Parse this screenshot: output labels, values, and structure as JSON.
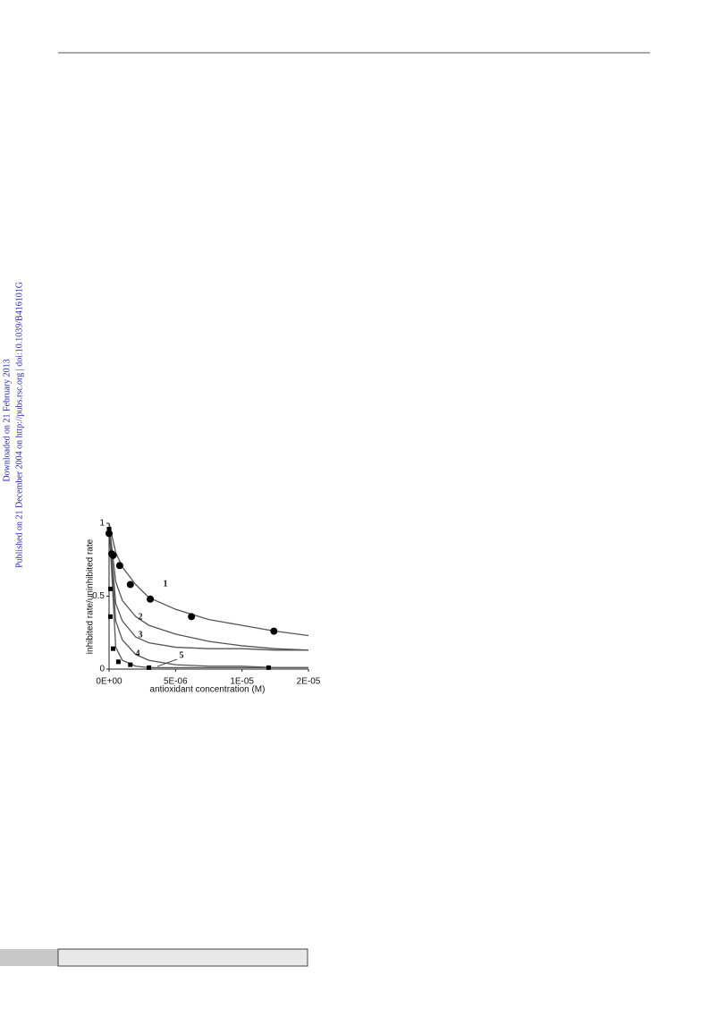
{
  "sidebar": {
    "downloaded": "Downloaded on 21 February 2013",
    "published": "Published on 21 December 2004 on http://pubs.rsc.org | doi:10.1039/B416101G"
  },
  "chart_data": {
    "type": "line",
    "y_label": "inhibited rate/uninhibited rate",
    "x_label": "antioxidant concentration (M)",
    "xlim": [
      0,
      1.5e-05
    ],
    "ylim": [
      0,
      1
    ],
    "xticks": [
      {
        "value": 0,
        "label": "0E+00"
      },
      {
        "value": 5e-06,
        "label": "5E-06"
      },
      {
        "value": 1e-05,
        "label": "1E-05"
      },
      {
        "value": 1.5e-05,
        "label": "2E-05"
      }
    ],
    "yticks": [
      0,
      0.5,
      1
    ],
    "line_color": "#555555",
    "series": [
      {
        "name": "1",
        "x": [
          0,
          5e-07,
          1e-06,
          2e-06,
          3e-06,
          5e-06,
          7.5e-06,
          1e-05,
          1.25e-05,
          1.5e-05
        ],
        "values": [
          1.0,
          0.8,
          0.7,
          0.58,
          0.49,
          0.41,
          0.34,
          0.3,
          0.26,
          0.23
        ]
      },
      {
        "name": "2",
        "x": [
          0,
          5e-07,
          1e-06,
          2e-06,
          3e-06,
          5e-06,
          7.5e-06,
          1e-05,
          1.25e-05,
          1.5e-05
        ],
        "values": [
          1.0,
          0.6,
          0.47,
          0.36,
          0.3,
          0.24,
          0.19,
          0.16,
          0.14,
          0.13
        ]
      },
      {
        "name": "3",
        "x": [
          0,
          5e-07,
          1e-06,
          2e-06,
          3e-06,
          5e-06,
          7.5e-06,
          1e-05,
          1.25e-05,
          1.5e-05
        ],
        "values": [
          1.0,
          0.45,
          0.33,
          0.22,
          0.18,
          0.15,
          0.14,
          0.14,
          0.13,
          0.13
        ]
      },
      {
        "name": "4",
        "x": [
          0,
          5e-07,
          1e-06,
          2e-06,
          3e-06,
          5e-06,
          7.5e-06,
          1e-05,
          1.25e-05,
          1.5e-05
        ],
        "values": [
          1.0,
          0.33,
          0.2,
          0.1,
          0.06,
          0.03,
          0.02,
          0.02,
          0.01,
          0.01
        ]
      },
      {
        "name": "5",
        "x": [
          0,
          5e-07,
          1e-06,
          2e-06,
          3e-06,
          5e-06,
          7.5e-06,
          1e-05,
          1.25e-05,
          1.5e-05
        ],
        "values": [
          1.0,
          0.15,
          0.06,
          0.02,
          0.01,
          0.01,
          0.01,
          0.01,
          0.01,
          0.01
        ]
      }
    ],
    "markers": [
      {
        "shape": "circle",
        "x": [
          0,
          2e-07,
          3e-07,
          8e-07,
          1.6e-06,
          3.1e-06,
          6.2e-06,
          1.24e-05
        ],
        "values": [
          0.93,
          0.79,
          0.78,
          0.71,
          0.58,
          0.48,
          0.36,
          0.26
        ]
      },
      {
        "shape": "square",
        "x": [
          0,
          1e-07,
          1e-07,
          3e-07,
          7e-07,
          1.6e-06,
          3e-06,
          1.2e-05
        ],
        "values": [
          0.96,
          0.55,
          0.36,
          0.14,
          0.05,
          0.03,
          0.01,
          0.01
        ]
      }
    ]
  }
}
